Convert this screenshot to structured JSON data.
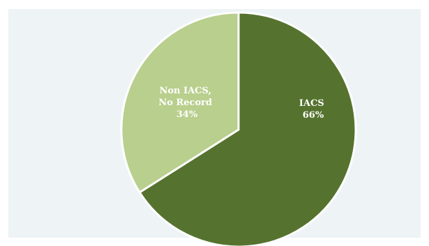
{
  "chart_data": {
    "type": "pie",
    "slices": [
      {
        "label_lines": [
          "IACS",
          "66%"
        ],
        "value": 66,
        "color": "#55732e"
      },
      {
        "label_lines": [
          "Non IACS,",
          "No Record",
          "34%"
        ],
        "value": 34,
        "color": "#b9cf8d"
      }
    ],
    "start_angle_deg": 0,
    "direction": "clockwise",
    "background_color": "#eef3f6",
    "slice_border_color": "#ffffff"
  }
}
